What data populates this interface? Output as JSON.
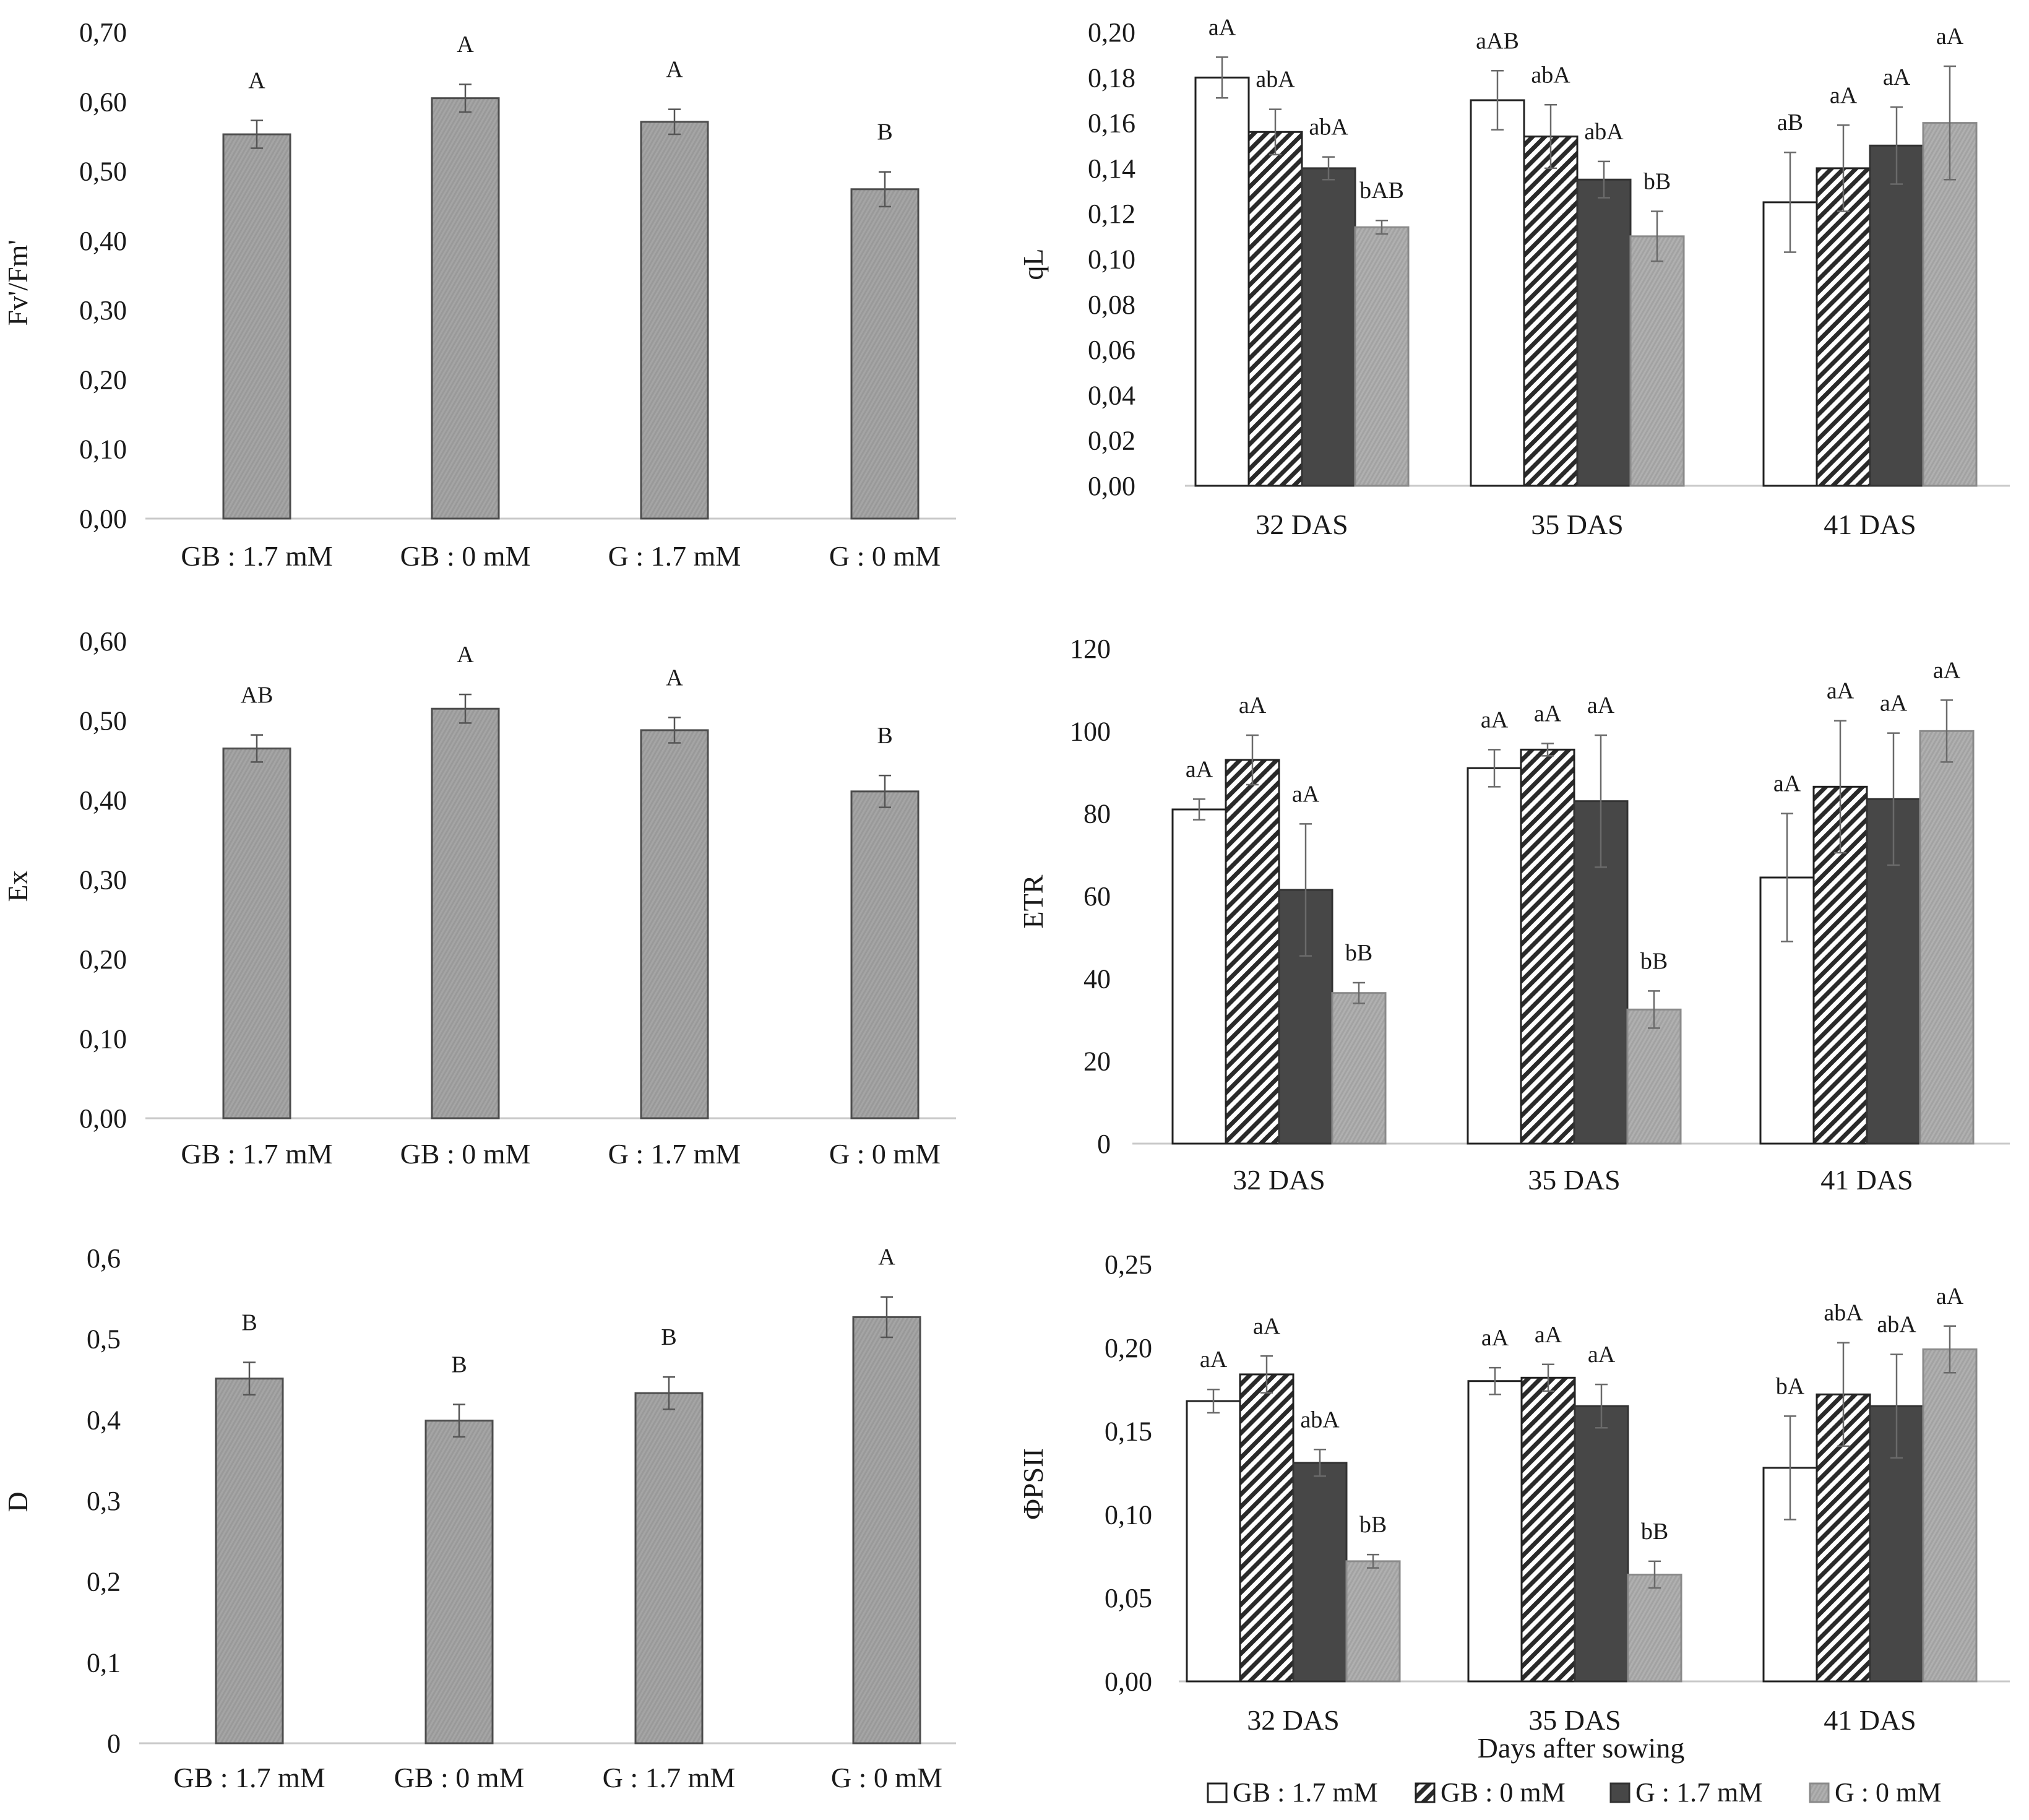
{
  "colors": {
    "bar": "#a3a3a3",
    "bar_edge": "#4d4d4d",
    "dark": "#474747",
    "light": "#aaaaaa",
    "white": "#ffffff",
    "axis": "#c9c9c9"
  },
  "legend": {
    "items": [
      {
        "label": "GB : 1.7 mM",
        "style": "white"
      },
      {
        "label": "GB : 0 mM",
        "style": "hatch"
      },
      {
        "label": "G : 1.7 mM",
        "style": "dark"
      },
      {
        "label": "G : 0 mM",
        "style": "light"
      }
    ]
  },
  "chart_data": [
    {
      "id": "fvfm",
      "type": "bar",
      "ylabel": "Fv'/Fm'",
      "categories": [
        "GB : 1.7 mM",
        "GB : 0 mM",
        "G : 1.7 mM",
        "G : 0 mM"
      ],
      "values": [
        0.553,
        0.605,
        0.571,
        0.474
      ],
      "errors": [
        0.02,
        0.02,
        0.018,
        0.025
      ],
      "letters": [
        "A",
        "A",
        "A",
        "B"
      ],
      "ylim": [
        0,
        0.7
      ],
      "yticks": [
        "0,00",
        "0,10",
        "0,20",
        "0,30",
        "0,40",
        "0,50",
        "0,60",
        "0,70"
      ]
    },
    {
      "id": "ex",
      "type": "bar",
      "ylabel": "Ex",
      "categories": [
        "GB : 1.7 mM",
        "GB : 0 mM",
        "G : 1.7 mM",
        "G : 0 mM"
      ],
      "values": [
        0.465,
        0.515,
        0.488,
        0.411
      ],
      "errors": [
        0.017,
        0.018,
        0.016,
        0.02
      ],
      "letters": [
        "AB",
        "A",
        "A",
        "B"
      ],
      "ylim": [
        0,
        0.6
      ],
      "yticks": [
        "0,00",
        "0,10",
        "0,20",
        "0,30",
        "0,40",
        "0,50",
        "0,60"
      ]
    },
    {
      "id": "d",
      "type": "bar",
      "ylabel": "D",
      "categories": [
        "GB : 1.7 mM",
        "GB : 0 mM",
        "G : 1.7 mM",
        "G : 0 mM"
      ],
      "values": [
        0.451,
        0.399,
        0.433,
        0.527
      ],
      "errors": [
        0.02,
        0.02,
        0.02,
        0.025
      ],
      "letters": [
        "B",
        "B",
        "B",
        "A"
      ],
      "ylim": [
        0,
        0.6
      ],
      "yticks": [
        "0",
        "0,1",
        "0,2",
        "0,3",
        "0,4",
        "0,5",
        "0,6"
      ]
    },
    {
      "id": "ql",
      "type": "bar",
      "ylabel": "qL",
      "categories": [
        "32 DAS",
        "35 DAS",
        "41 DAS"
      ],
      "series": [
        {
          "name": "GB : 1.7 mM",
          "values": [
            0.18,
            0.17,
            0.125
          ],
          "errors": [
            0.009,
            0.013,
            0.022
          ],
          "letters": [
            "aA",
            "aAB",
            "aB"
          ]
        },
        {
          "name": "GB : 0 mM",
          "values": [
            0.156,
            0.154,
            0.14
          ],
          "errors": [
            0.01,
            0.014,
            0.019
          ],
          "letters": [
            "abA",
            "abA",
            "aA"
          ]
        },
        {
          "name": "G : 1.7 mM",
          "values": [
            0.14,
            0.135,
            0.15
          ],
          "errors": [
            0.005,
            0.008,
            0.017
          ],
          "letters": [
            "abA",
            "abA",
            "aA"
          ]
        },
        {
          "name": "G : 0 mM",
          "values": [
            0.114,
            0.11,
            0.16
          ],
          "errors": [
            0.003,
            0.011,
            0.025
          ],
          "letters": [
            "bAB",
            "bB",
            "aA"
          ]
        }
      ],
      "ylim": [
        0,
        0.2
      ],
      "yticks": [
        "0,00",
        "0,02",
        "0,04",
        "0,06",
        "0,08",
        "0,10",
        "0,12",
        "0,14",
        "0,16",
        "0,18",
        "0,20"
      ]
    },
    {
      "id": "etr",
      "type": "bar",
      "ylabel": "ETR",
      "categories": [
        "32 DAS",
        "35 DAS",
        "41 DAS"
      ],
      "series": [
        {
          "name": "GB : 1.7 mM",
          "values": [
            81,
            91,
            64.5
          ],
          "errors": [
            2.5,
            4.5,
            15.5
          ],
          "letters": [
            "aA",
            "aA",
            "aA"
          ]
        },
        {
          "name": "GB : 0 mM",
          "values": [
            93,
            95.5,
            86.5
          ],
          "errors": [
            6,
            1.5,
            16
          ],
          "letters": [
            "aA",
            "aA",
            "aA"
          ]
        },
        {
          "name": "G : 1.7 mM",
          "values": [
            61.5,
            83,
            83.5
          ],
          "errors": [
            16,
            16,
            16
          ],
          "letters": [
            "aA",
            "aA",
            "aA"
          ]
        },
        {
          "name": "G : 0 mM",
          "values": [
            36.5,
            32.5,
            100
          ],
          "errors": [
            2.5,
            4.5,
            7.5
          ],
          "letters": [
            "bB",
            "bB",
            "aA"
          ]
        }
      ],
      "ylim": [
        0,
        120
      ],
      "yticks": [
        "0",
        "20",
        "40",
        "60",
        "80",
        "100",
        "120"
      ]
    },
    {
      "id": "phipsii",
      "type": "bar",
      "ylabel": "ΦPSII",
      "xlabel": "Days after sowing",
      "categories": [
        "32 DAS",
        "35 DAS",
        "41 DAS"
      ],
      "series": [
        {
          "name": "GB : 1.7 mM",
          "values": [
            0.168,
            0.18,
            0.128
          ],
          "errors": [
            0.007,
            0.008,
            0.031
          ],
          "letters": [
            "aA",
            "aA",
            "bA"
          ]
        },
        {
          "name": "GB : 0 mM",
          "values": [
            0.184,
            0.182,
            0.172
          ],
          "errors": [
            0.011,
            0.008,
            0.031
          ],
          "letters": [
            "aA",
            "aA",
            "abA"
          ]
        },
        {
          "name": "G : 1.7 mM",
          "values": [
            0.131,
            0.165,
            0.165
          ],
          "errors": [
            0.008,
            0.013,
            0.031
          ],
          "letters": [
            "abA",
            "aA",
            "abA"
          ]
        },
        {
          "name": "G : 0 mM",
          "values": [
            0.072,
            0.064,
            0.199
          ],
          "errors": [
            0.004,
            0.008,
            0.014
          ],
          "letters": [
            "bB",
            "bB",
            "aA"
          ]
        }
      ],
      "ylim": [
        0,
        0.25
      ],
      "yticks": [
        "0,00",
        "0,05",
        "0,10",
        "0,15",
        "0,20",
        "0,25"
      ]
    }
  ]
}
